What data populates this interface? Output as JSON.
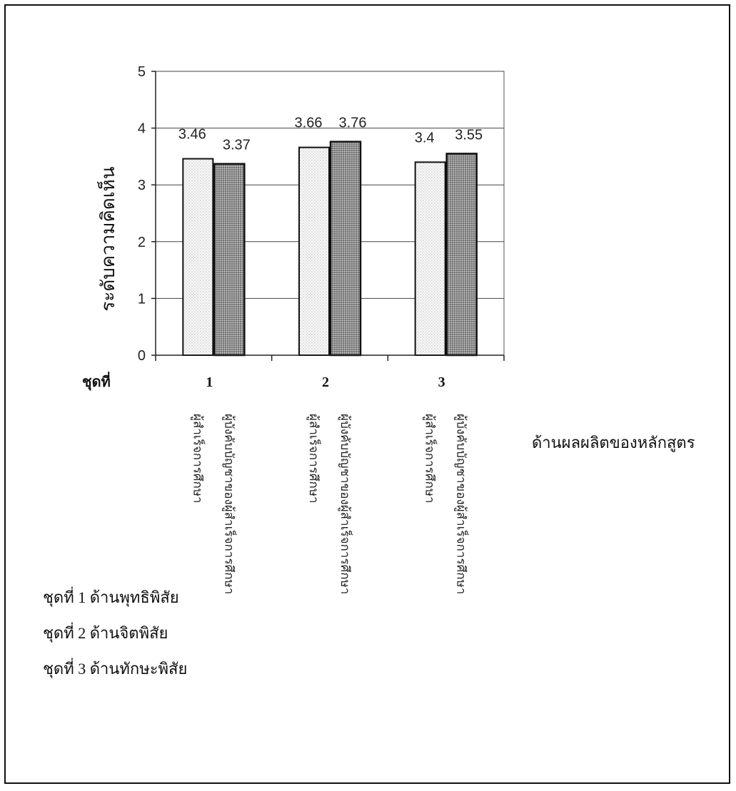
{
  "chart_data": {
    "type": "bar",
    "title": "",
    "ylabel": "ระดับความคิดเห็น",
    "xlabel": "ด้านผลผลิตของหลักสูตร",
    "category_prefix": "ชุดที่",
    "categories": [
      "1",
      "2",
      "3"
    ],
    "ylim": [
      0,
      5
    ],
    "yticks": [
      0,
      1,
      2,
      3,
      4,
      5
    ],
    "grid": true,
    "series": [
      {
        "name": "ผู้สำเร็จการศึกษา",
        "values": [
          3.46,
          3.66,
          3.4
        ],
        "data_labels": [
          "3.46",
          "3.66",
          "3.4"
        ]
      },
      {
        "name": "ผู้บังคับบัญชาของผู้สำเร็จการศึกษา",
        "values": [
          3.37,
          3.76,
          3.55
        ],
        "data_labels": [
          "3.37",
          "3.76",
          "3.55"
        ]
      }
    ],
    "bar_colors": [
      "#f4f4f4",
      "#8c8c8c"
    ]
  },
  "notes": [
    "ชุดที่ 1 ด้านพุทธิพิสัย",
    "ชุดที่ 2 ด้านจิตพิสัย",
    "ชุดที่ 3 ด้านทักษะพิสัย"
  ]
}
